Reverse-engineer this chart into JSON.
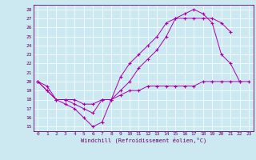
{
  "bg_color": "#cce8f0",
  "line_color": "#aa00aa",
  "xlim": [
    -0.5,
    23.5
  ],
  "ylim": [
    14.5,
    28.5
  ],
  "xticks": [
    0,
    1,
    2,
    3,
    4,
    5,
    6,
    7,
    8,
    9,
    10,
    11,
    12,
    13,
    14,
    15,
    16,
    17,
    18,
    19,
    20,
    21,
    22,
    23
  ],
  "yticks": [
    15,
    16,
    17,
    18,
    19,
    20,
    21,
    22,
    23,
    24,
    25,
    26,
    27,
    28
  ],
  "xlabel": "Windchill (Refroidissement éolien,°C)",
  "line1_x": [
    0,
    1,
    2,
    3,
    4,
    5,
    6,
    7,
    8,
    9,
    10,
    11,
    12,
    13,
    14,
    15,
    16,
    17,
    18,
    19,
    20,
    21,
    22
  ],
  "line1_y": [
    20,
    19,
    18,
    17.5,
    17,
    16,
    15,
    15.5,
    18,
    20.5,
    22,
    23,
    24,
    25,
    26.5,
    27,
    27.5,
    28,
    27.5,
    26.5,
    23,
    22,
    20
  ],
  "line2_x": [
    0,
    1,
    2,
    3,
    4,
    5,
    6,
    7,
    8,
    9,
    10,
    11,
    12,
    13,
    14,
    15,
    16,
    17,
    18,
    19,
    20,
    21
  ],
  "line2_y": [
    20,
    19.5,
    18,
    18,
    17.5,
    17,
    16.5,
    18,
    18,
    19,
    20,
    21.5,
    22.5,
    23.5,
    25,
    27,
    27,
    27,
    27,
    27,
    26.5,
    25.5
  ],
  "line3_x": [
    0,
    1,
    2,
    3,
    4,
    5,
    6,
    7,
    8,
    9,
    10,
    11,
    12,
    13,
    14,
    15,
    16,
    17,
    18,
    19,
    20,
    21,
    22,
    23
  ],
  "line3_y": [
    20,
    19,
    18,
    18,
    18,
    17.5,
    17.5,
    18,
    18,
    18.5,
    19,
    19,
    19.5,
    19.5,
    19.5,
    19.5,
    19.5,
    19.5,
    20,
    20,
    20,
    20,
    20,
    20
  ]
}
